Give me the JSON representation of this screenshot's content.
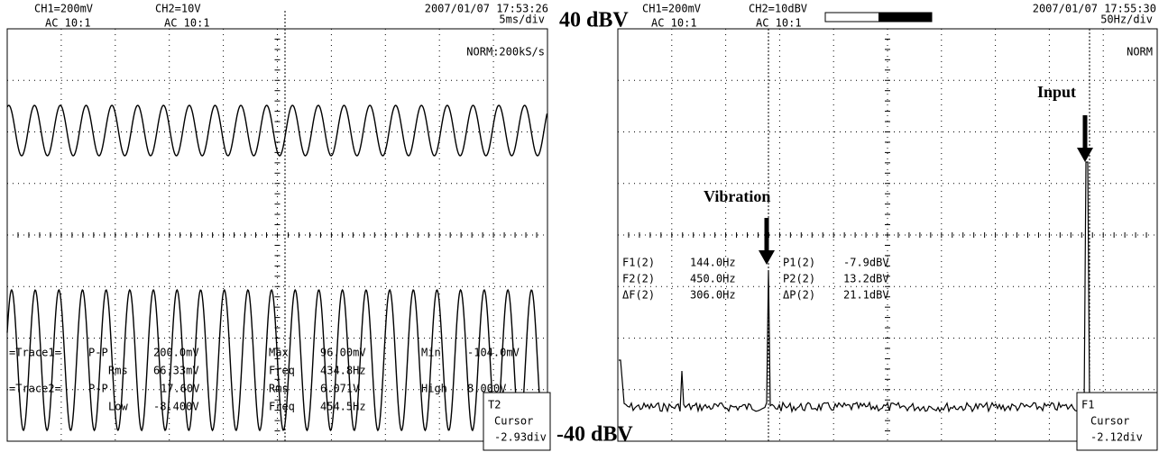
{
  "left_scope": {
    "datetime": "2007/01/07 17:53:26",
    "ch1": "CH1=200mV",
    "ch2": "CH2=10V",
    "ch1_coupling": "AC 10:1",
    "ch2_coupling": "AC 10:1",
    "timebase": "5ms/div",
    "mode": "NORM:200kS/s",
    "measurements": [
      "=Trace1=",
      "P-P",
      "200.0mV",
      "Max",
      "96.00mV",
      "Min",
      "-104.0mV",
      "Rms",
      "66.33mV",
      "Freq",
      "434.8Hz",
      "=Trace2=",
      "P-P",
      "17.60V",
      "Rms",
      "6.071V",
      "High",
      "8.000V",
      "Low",
      "-8.400V",
      "Freq",
      "454.5Hz"
    ],
    "cursor": {
      "name": "T2",
      "label": "Cursor",
      "value": "-2.93div"
    }
  },
  "right_scope": {
    "datetime": "2007/01/07 17:55:30",
    "ch1": "CH1=200mV",
    "ch2": "CH2=10dBV",
    "ch1_coupling": "AC 10:1",
    "ch2_coupling": "AC 10:1",
    "timebase": "50Hz/div",
    "mode": "NORM",
    "measurements": [
      "F1(2)",
      "144.0Hz",
      "P1(2)",
      "-7.9dBV",
      "F2(2)",
      "450.0Hz",
      "P2(2)",
      "13.2dBV",
      "ΔF(2)",
      "306.0Hz",
      "ΔP(2)",
      "21.1dBV"
    ],
    "cursor": {
      "name": "F1",
      "label": "Cursor",
      "value": "-2.12div"
    },
    "annotations": [
      "Input",
      "Vibration"
    ]
  },
  "scale_labels": [
    "40 dBV",
    "-40 dBV"
  ]
}
